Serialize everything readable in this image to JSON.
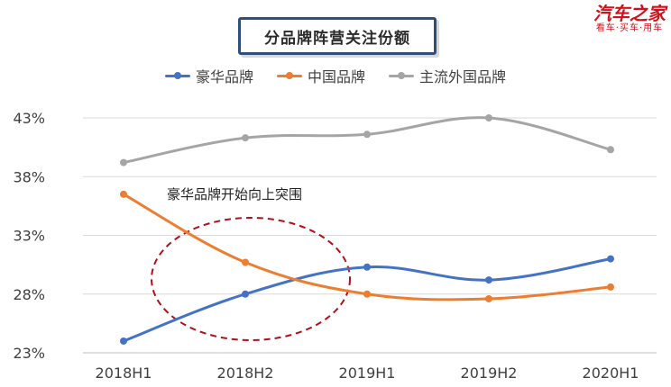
{
  "title": "分品牌阵营关注份额",
  "brand": {
    "name": "汽车之家",
    "slogan": "看车·买车·用车",
    "color": "#d2101a"
  },
  "annotation": "豪华品牌开始向上突围",
  "chart_data": {
    "type": "line",
    "categories": [
      "2018H1",
      "2018H2",
      "2019H1",
      "2019H2",
      "2020H1"
    ],
    "y_ticks": [
      "43%",
      "38%",
      "33%",
      "28%",
      "23%"
    ],
    "ylim": [
      23,
      43
    ],
    "unit": "%",
    "grid": true,
    "legend_position": "top",
    "series": [
      {
        "name": "豪华品牌",
        "color": "#4472c4",
        "values": [
          24.0,
          28.0,
          30.3,
          29.2,
          31.0
        ]
      },
      {
        "name": "中国品牌",
        "color": "#ed7d31",
        "values": [
          36.5,
          30.7,
          28.0,
          27.6,
          28.6
        ]
      },
      {
        "name": "主流外国品牌",
        "color": "#a5a5a5",
        "values": [
          39.2,
          41.3,
          41.6,
          43.0,
          40.3
        ]
      }
    ]
  }
}
